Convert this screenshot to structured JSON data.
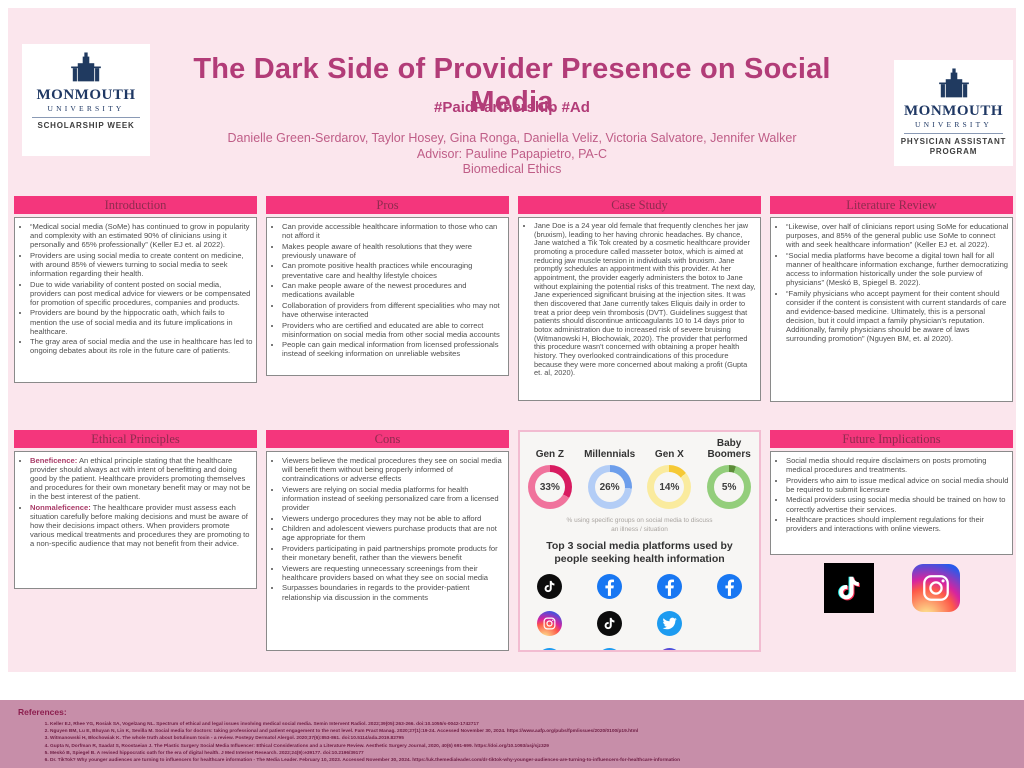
{
  "header": {
    "title": "The Dark Side of Provider Presence on Social Media",
    "hashtags": "#PaidPartnership #Ad",
    "authors": "Danielle Green-Serdarov, Taylor Hosey, Gina Ronga, Daniella Veliz, Victoria Salvatore, Jennifer Walker",
    "advisor": "Advisor: Pauline Papapietro, PA-C",
    "course": "Biomedical Ethics"
  },
  "logos": {
    "left": {
      "name": "MONMOUTH",
      "sub": "UNIVERSITY",
      "tag": "SCHOLARSHIP WEEK"
    },
    "right": {
      "name": "MONMOUTH",
      "sub": "UNIVERSITY",
      "tag": "PHYSICIAN ASSISTANT PROGRAM"
    }
  },
  "panels": {
    "introduction": {
      "title": "Introduction",
      "bullets": [
        "“Medical social media (SoMe) has continued to grow in popularity and complexity with an estimated 90% of clinicians using it personally and 65% professionally” (Keller EJ et. al 2022).",
        "Providers are using social media to create content on medicine, with around 85% of viewers turning to social media to seek information regarding their health.",
        "Due to wide variability of content posted on social media, providers can post medical advice for viewers or be compensated for promotion of specific procedures, companies and products.",
        "Providers are bound by the hippocratic oath, which fails to mention the use of social media and its future implications in healthcare.",
        "The gray area of social media and the use in healthcare has led to ongoing debates about its role in the future care of patients."
      ]
    },
    "pros": {
      "title": "Pros",
      "bullets": [
        "Can provide accessible healthcare information to those who can not afford it",
        "Makes people aware of health resolutions that they were previously unaware of",
        "Can promote positive health practices while encouraging preventative care and healthy lifestyle choices",
        "Can make people aware of the newest procedures and medications available",
        "Collaboration of providers from different specialities who may not have otherwise interacted",
        "Providers who are certified and educated are able to correct misinformation on social media from other social media accounts",
        "People can gain medical information from licensed professionals instead of seeking information on unreliable websites"
      ]
    },
    "case_study": {
      "title": "Case Study",
      "bullets": [
        "Jane Doe is a 24 year old female that frequently clenches her jaw (bruxism), leading to her having chronic headaches. By chance, Jane watched a Tik Tok created by a cosmetic healthcare provider promoting a procedure called masseter botox, which is aimed at reducing jaw muscle tension in individuals with bruxism. Jane promptly schedules an appointment with this provider. At her appointment, the provider eagerly administers the botox to Jane without explaining the potential risks of this treatment. The next day, Jane experienced significant bruising at the injection sites. It was then discovered that Jane currently takes Eliquis daily in order to treat a prior deep vein thrombosis (DVT). Guidelines suggest that patients should discontinue anticoagulants 10 to 14 days prior to botox administration due to increased risk of severe bruising (Witmanowski H, Błochowiak, 2020). The provider that performed this procedure wasn't concerned with obtaining a proper health history. They overlooked contraindications of this procedure because they were more concerned about making a profit (Gupta et. al, 2020)."
      ]
    },
    "literature_review": {
      "title": "Literature Review",
      "bullets": [
        "“Likewise, over half of clinicians report using SoMe for educational purposes, and 85% of the general public use SoMe to connect with and seek healthcare information” (Keller EJ et. al 2022).",
        "“Social media platforms have become a digital town hall for all manner of healthcare information exchange, further democratizing access to information historically under the sole purview of physicians” (Meskó B, Spiegel B. 2022).",
        "“Family physicians who accept payment for their content should consider if the content is consistent with current standards of care and evidence-based medicine. Ultimately, this is a personal decision, but it could impact a family physician's reputation. Additionally, family physicians should be aware of laws surrounding promotion” (Nguyen BM, et. al 2020)."
      ]
    },
    "ethical_principles": {
      "title": "Ethical Principles",
      "bullets": [
        {
          "lead": "Beneficence:",
          "text": " An ethical principle stating that the healthcare provider should always act with intent of benefitting and doing good by the patient. Healthcare providers promoting themselves and procedures for their own monetary benefit may or may not be in the best interest of the patient."
        },
        {
          "lead": "Nonmaleficence:",
          "text": " The healthcare provider must assess each situation carefully before making decisions and must be aware of how their decisions impact others. When providers promote various medical treatments and procedures they are promoting to a non-specific audience that may not benefit from their advice."
        }
      ]
    },
    "cons": {
      "title": "Cons",
      "bullets": [
        "Viewers believe the medical procedures they see on social media will benefit them without being properly informed of contraindications or adverse effects",
        "Viewers are relying on social media platforms for health information instead of seeking personalized care from a licensed provider",
        "Viewers undergo procedures they may not be able to afford",
        "Children and adolescent viewers purchase products that are not age appropriate for them",
        "Providers participating in paid partnerships promote products for their monetary benefit, rather than the viewers benefit",
        "Viewers are requesting unnecessary screenings from their healthcare providers based on what they see on social media",
        "Surpasses boundaries in regards to the provider-patient relationship via discussion in the comments"
      ]
    },
    "future_implications": {
      "title": "Future Implications",
      "bullets": [
        "Social media should require disclaimers on posts promoting medical procedures and treatments.",
        "Providers who aim to issue medical advice on social media should be required to submit licensure",
        "Medical providers using social media should be trained on how to correctly advertise their services.",
        "Healthcare practices should implement regulations for their providers and interactions with online viewers."
      ]
    }
  },
  "infographic": {
    "caption": "% using specific groups on social media to discuss\nan illness / situation",
    "subtitle": "Top 3 social media platforms used by people seeking health information",
    "chart_data": {
      "type": "donut",
      "series": [
        {
          "label": "Gen Z",
          "value": 33,
          "color_dark": "#d81b60",
          "color_light": "#f0739c"
        },
        {
          "label": "Millennials",
          "value": 26,
          "color_dark": "#6d9eeb",
          "color_light": "#b3cdf6"
        },
        {
          "label": "Gen X",
          "value": 14,
          "color_dark": "#f6c935",
          "color_light": "#faeb9e"
        },
        {
          "label": "Baby Boomers",
          "value": 5,
          "color_dark": "#5c8c38",
          "color_light": "#93ce7b"
        }
      ]
    },
    "platform_columns": [
      [
        "tiktok",
        "instagram",
        "twitter"
      ],
      [
        "facebook",
        "tiktok",
        "twitter"
      ],
      [
        "facebook",
        "twitter",
        "instagram"
      ],
      [
        "facebook"
      ]
    ]
  },
  "references": {
    "title": "References:",
    "items": [
      "Keller EJ, Rhee YG, Rosiak SA, Vogelzang NL. Spectrum of ethical and legal issues involving medical social media. Semin Intervent Radiol. 2022;39(05):263-266. doi:10.1055/s-0042-1742717",
      "Nguyen BM, Lu E, Bhuyan N, Lin K, Sevilla M. Social media for doctors: taking professional and patient engagement to the next level. Fam Pract Manag. 2020;27(1):19-24. Accessed November 30, 2024. https://www.aafp.org/pubs/fpm/issues/2020/0100/p19.html",
      "Witmanowski H, Błochowiak K. The whole truth about botulinum toxin - a review. Postepy Dermatol Alergol. 2020;37(6):853-861. doi:10.5114/ada.2019.82795",
      "Gupta N, Dorfman R, Saadat S, Roostaeian J. The Plastic Surgery Social Media Influencer: Ethical Considerations and a Literature Review. Aesthetic Surgery Journal, 2020, 40(6) 691-699. https://doi.org/10.1093/asj/sjz329",
      "Meskó B, Spiegel B. A revised hippocratic oath for the era of digital health. J Med Internet Research. 2022;24(9):e39177. doi:10.2196/39177",
      "Dr. TikTok? Why younger audiences are turning to influencers for healthcare information - The Media Leader. February 10, 2023. Accessed November 30, 2024. https://uk.themedialeader.com/dr-tiktok-why-younger-audiences-are-turning-to-influencers-for-healthcare-information"
    ]
  }
}
